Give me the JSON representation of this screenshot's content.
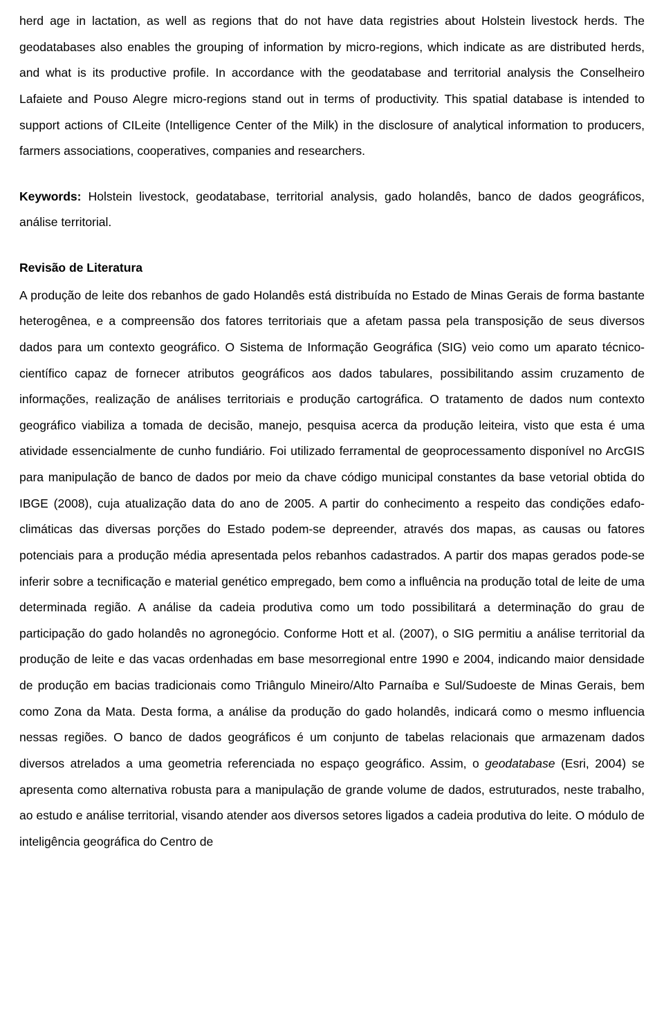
{
  "abstract": {
    "text": "herd age in lactation, as well as regions that do not have data registries about Holstein livestock herds. The geodatabases also enables the grouping of information by micro-regions, which indicate as are distributed herds, and what is its productive profile. In accordance with the geodatabase and territorial analysis the Conselheiro Lafaiete and Pouso Alegre micro-regions stand out in terms of productivity. This spatial database is intended to support actions of CILeite (Intelligence Center of the Milk) in the disclosure of analytical information to producers, farmers associations, cooperatives, companies and researchers."
  },
  "keywords": {
    "label": "Keywords:",
    "text": " Holstein livestock, geodatabase, territorial analysis, gado holandês, banco de dados geográficos, análise territorial."
  },
  "section": {
    "heading": "Revisão de Literatura",
    "body_part1": "A produção de leite dos rebanhos de gado Holandês está distribuída no Estado de Minas Gerais de forma bastante heterogênea, e a compreensão dos fatores territoriais que a afetam passa pela transposição de seus diversos dados para um contexto geográfico. O Sistema de Informação Geográfica (SIG) veio como um aparato técnico-científico capaz de fornecer atributos geográficos aos dados tabulares, possibilitando assim cruzamento de informações, realização de análises territoriais e produção cartográfica. O tratamento de dados num contexto geográfico viabiliza a tomada de decisão, manejo, pesquisa acerca da produção leiteira, visto que esta é uma atividade essencialmente de cunho fundiário. Foi utilizado ferramental de geoprocessamento disponível no ArcGIS para manipulação de banco de dados por meio da chave código municipal constantes da base vetorial obtida do IBGE (2008), cuja atualização data do ano de 2005. A partir do conhecimento a respeito das condições edafo-climáticas das diversas porções do Estado podem-se depreender, através dos mapas, as causas ou fatores potenciais para a produção média apresentada pelos rebanhos cadastrados. A partir dos mapas gerados pode-se inferir sobre a tecnificação e material genético empregado, bem como a influência na produção total de leite de uma determinada região. A análise da cadeia produtiva como um todo possibilitará a determinação do grau de participação do gado holandês no agronegócio. Conforme Hott et al. (2007), o SIG permitiu a análise territorial da produção de leite e das vacas ordenhadas em base mesorregional entre 1990 e 2004, indicando maior densidade de produção em bacias tradicionais como Triângulo Mineiro/Alto Parnaíba e Sul/Sudoeste de Minas Gerais, bem como Zona da Mata. Desta forma, a análise da produção do gado holandês, indicará como o mesmo influencia nessas regiões. O banco de dados geográficos é um conjunto de tabelas relacionais que armazenam dados diversos atrelados a uma geometria referenciada no espaço geográfico. Assim, o ",
    "body_italic": "geodatabase",
    "body_part2": " (Esri, 2004) se apresenta como alternativa robusta para a manipulação de grande volume de dados, estruturados, neste trabalho, ao estudo e análise territorial, visando atender aos diversos setores ligados a cadeia produtiva do leite. O módulo de inteligência geográfica do Centro de"
  }
}
